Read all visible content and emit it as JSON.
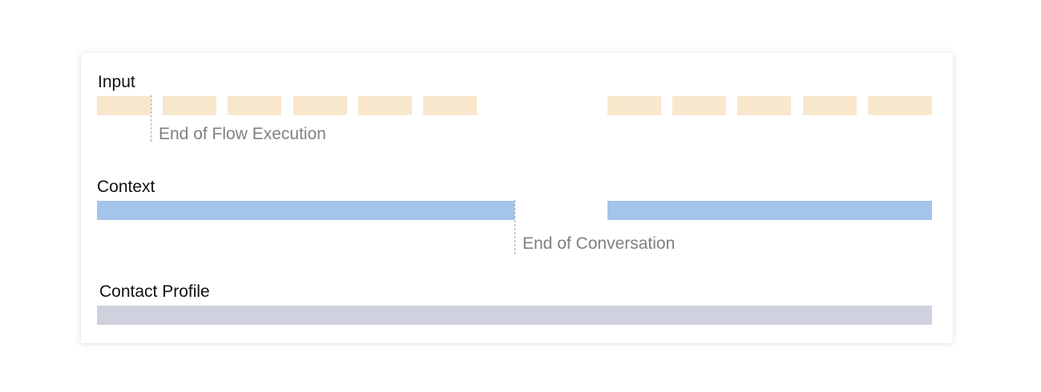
{
  "rows": {
    "input": {
      "label": "Input",
      "color": "#f9e7cd",
      "marker_label": "End of Flow Execution"
    },
    "context": {
      "label": "Context",
      "color": "#a4c4ea",
      "marker_label": "End of Conversation"
    },
    "contact_profile": {
      "label": "Contact Profile",
      "color": "#d0d1de"
    }
  },
  "colors": {
    "marker_line": "#a8a8a8",
    "marker_text": "#808080",
    "label_text": "#111111"
  }
}
